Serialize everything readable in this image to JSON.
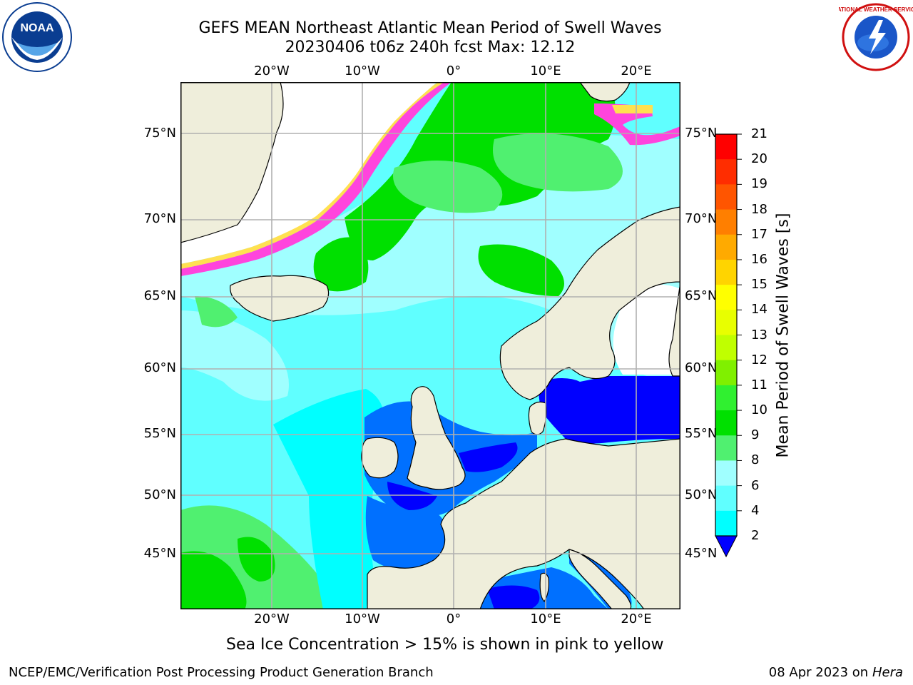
{
  "header": {
    "title_line1": "GEFS MEAN Northeast Atlantic Mean Period of Swell Waves",
    "title_line2": "20230406 t06z 240h fcst   Max: 12.12",
    "logo_left": "NOAA",
    "logo_right": "NATIONAL WEATHER SERVICE"
  },
  "map": {
    "top_ticks": [
      "20°W",
      "10°W",
      "0°",
      "10°E",
      "20°E"
    ],
    "bottom_ticks": [
      "20°W",
      "10°W",
      "0°",
      "10°E",
      "20°E"
    ],
    "left_ticks": [
      "75°N",
      "70°N",
      "65°N",
      "60°N",
      "55°N",
      "50°N",
      "45°N"
    ],
    "right_ticks": [
      "75°N",
      "70°N",
      "65°N",
      "60°N",
      "55°N",
      "50°N",
      "45°N"
    ]
  },
  "colorbar": {
    "label": "Mean Period of Swell Waves [s]",
    "ticks": [
      "21",
      "20",
      "19",
      "18",
      "17",
      "16",
      "15",
      "14",
      "13",
      "12",
      "11",
      "10",
      "9",
      "8",
      "6",
      "4",
      "2"
    ],
    "colors": [
      "#ff0000",
      "#ff2d00",
      "#ff5500",
      "#ff7f00",
      "#ffaa00",
      "#ffd400",
      "#ffff00",
      "#e8ff00",
      "#c0ff00",
      "#80f000",
      "#30f030",
      "#00e000",
      "#50f070",
      "#a0ffff",
      "#60ffff",
      "#00ffff",
      "#0070ff",
      "#0000ff"
    ]
  },
  "legend_note": "Sea Ice Concentration > 15% is shown in pink to yellow",
  "footer": {
    "left": "NCEP/EMC/Verification Post Processing Product Generation Branch",
    "right_date": "08 Apr 2023 on ",
    "right_host": "Hera"
  },
  "colors": {
    "land": "#efeedb",
    "ice_edge_pink": "#ff44dd",
    "ice_yellow": "#ffe050",
    "grid": "#b0b0b0"
  }
}
